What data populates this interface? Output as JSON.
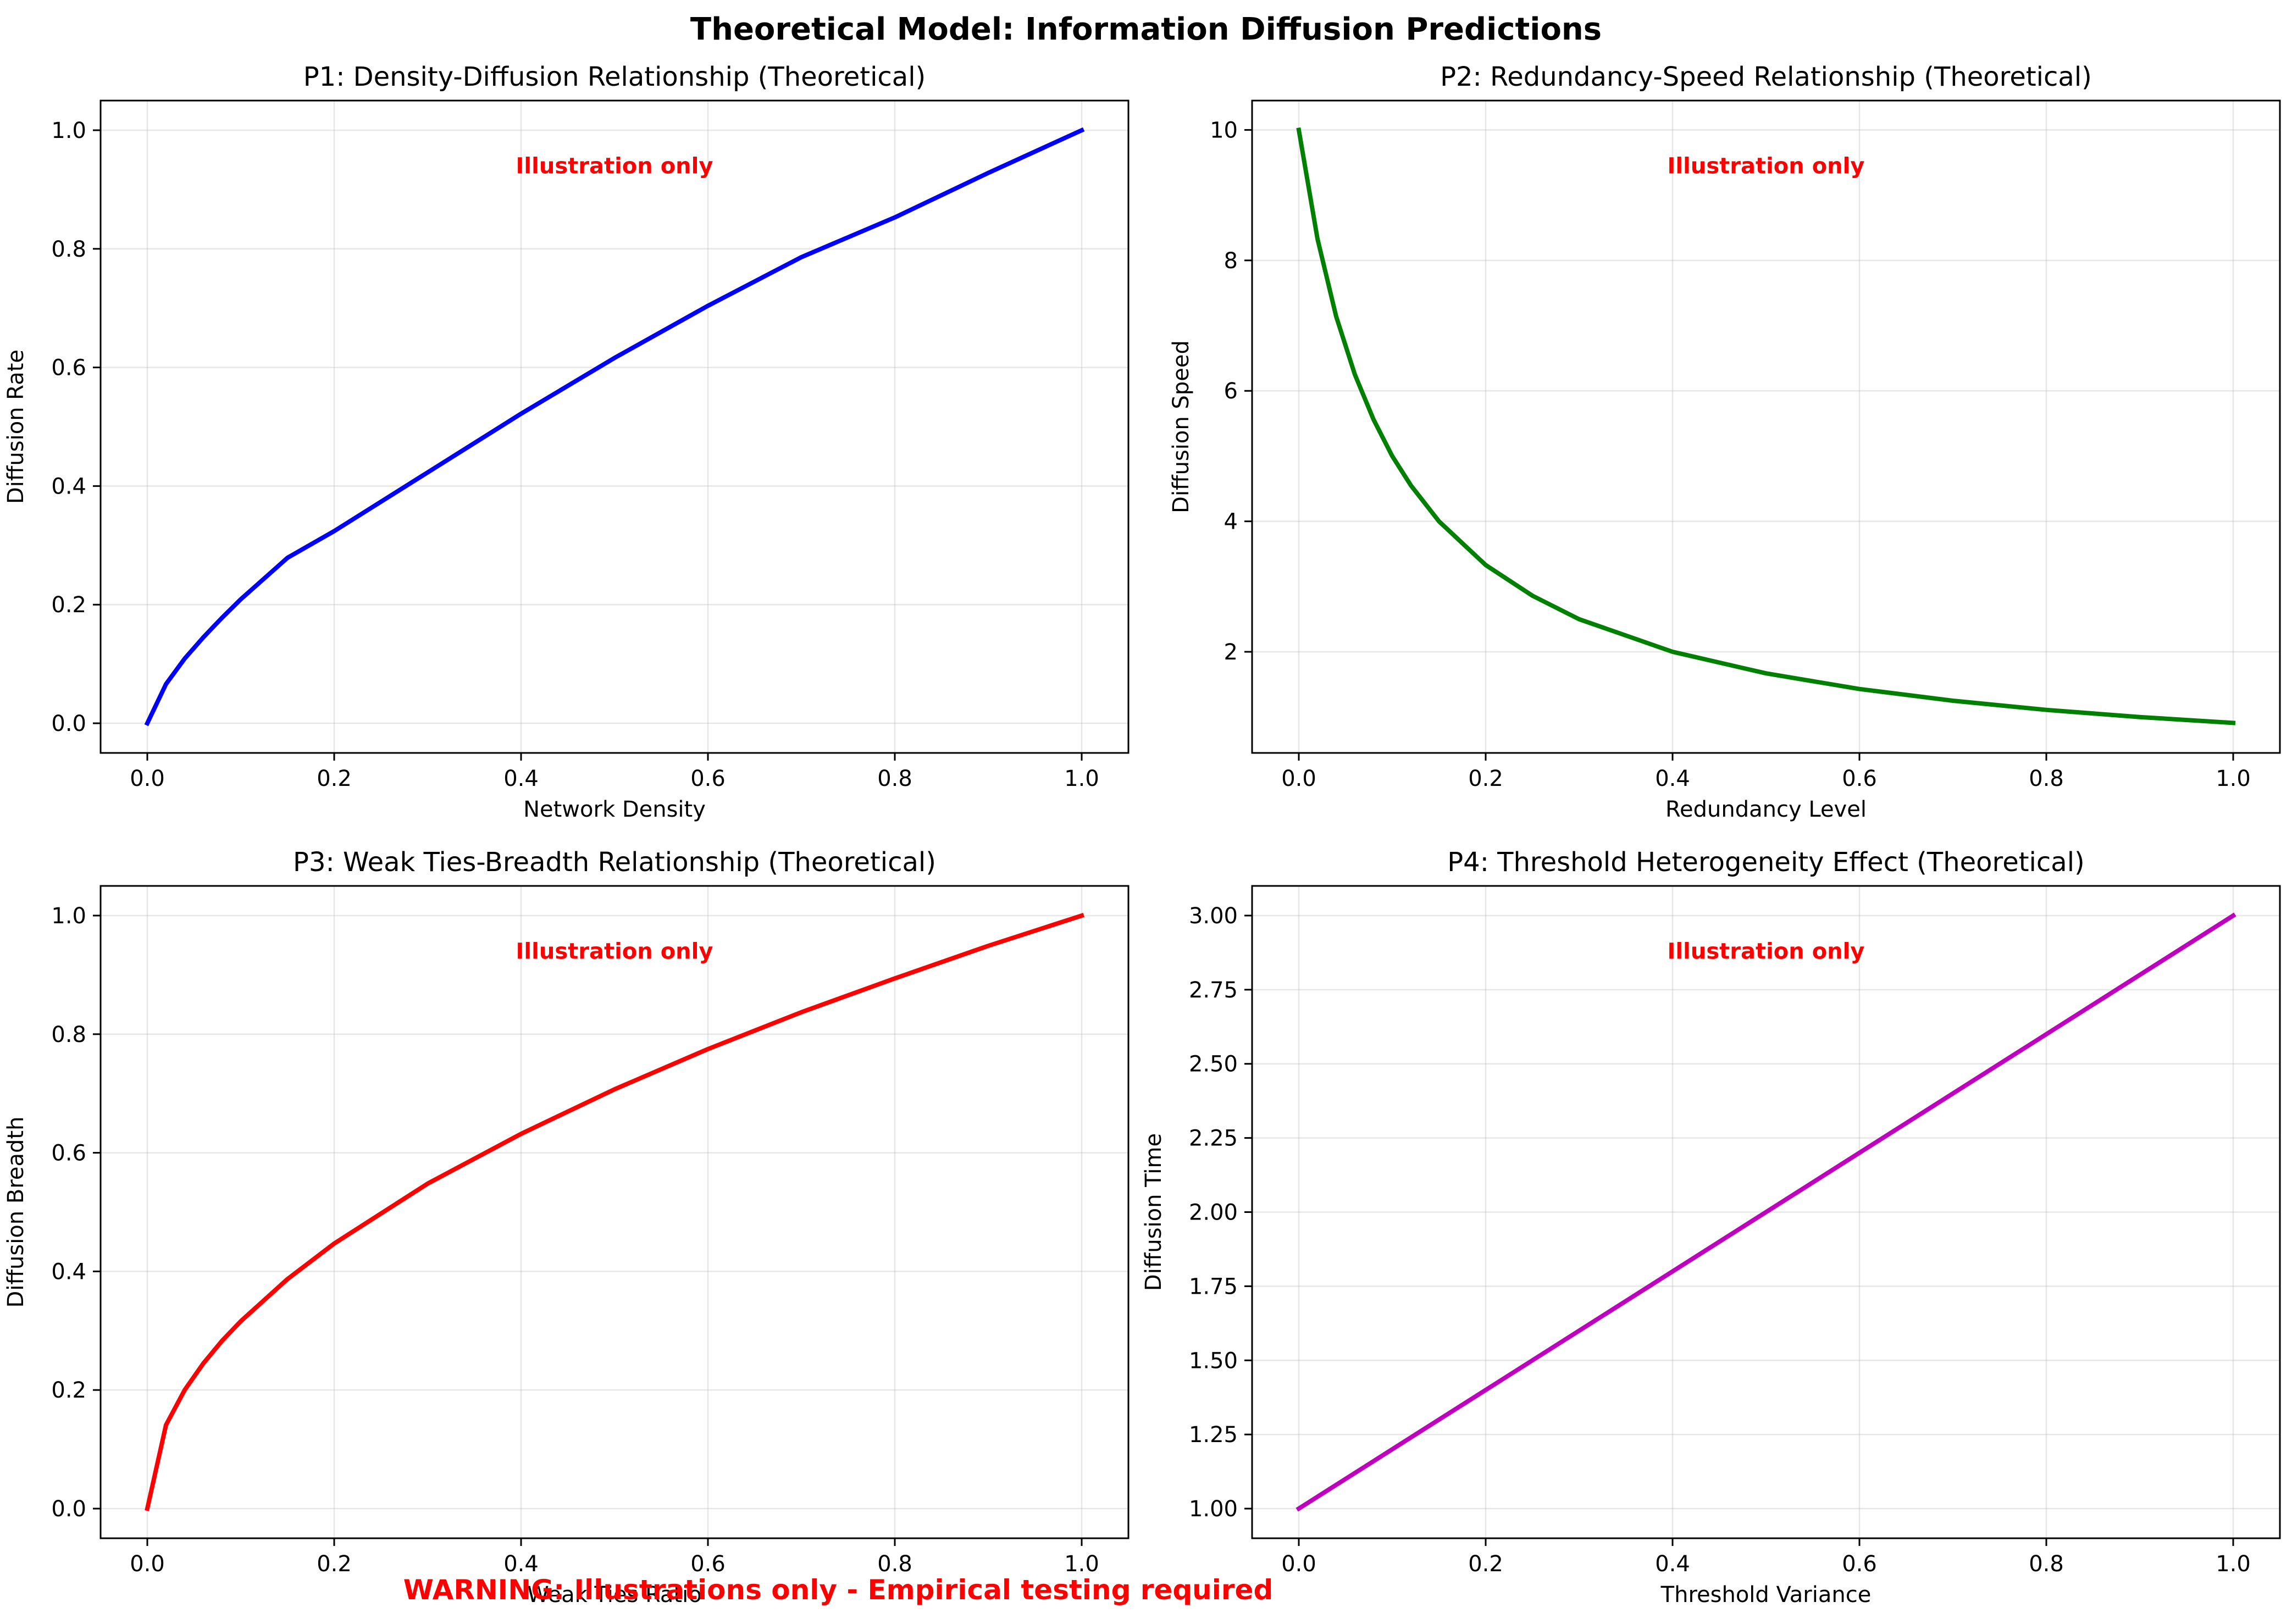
{
  "figure": {
    "title": "Theoretical Model: Information Diffusion Predictions",
    "warning": "WARNING: Illustrations only - Empirical testing required",
    "warning_color": "#ff0000"
  },
  "chart_data": [
    {
      "type": "line",
      "title": "P1: Density-Diffusion Relationship (Theoretical)",
      "xlabel": "Network Density",
      "ylabel": "Diffusion Rate",
      "xlim": [
        -0.05,
        1.05
      ],
      "ylim": [
        -0.05,
        1.05
      ],
      "xticks": [
        0.0,
        0.2,
        0.4,
        0.6,
        0.8,
        1.0
      ],
      "xtick_labels": [
        "0.0",
        "0.2",
        "0.4",
        "0.6",
        "0.8",
        "1.0"
      ],
      "yticks": [
        0.0,
        0.2,
        0.4,
        0.6,
        0.8,
        1.0
      ],
      "ytick_labels": [
        "0.0",
        "0.2",
        "0.4",
        "0.6",
        "0.8",
        "1.0"
      ],
      "grid": true,
      "annotation": "Illustration only",
      "annotation_color": "#ff0000",
      "series": [
        {
          "color": "#0000ff",
          "x": [
            0.0,
            0.02,
            0.04,
            0.06,
            0.08,
            0.1,
            0.15,
            0.2,
            0.3,
            0.4,
            0.5,
            0.6,
            0.7,
            0.8,
            0.9,
            1.0
          ],
          "y": [
            0.0,
            0.066,
            0.109,
            0.145,
            0.178,
            0.209,
            0.279,
            0.324,
            0.423,
            0.522,
            0.616,
            0.704,
            0.786,
            0.853,
            0.928,
            1.0
          ]
        }
      ]
    },
    {
      "type": "line",
      "title": "P2: Redundancy-Speed Relationship (Theoretical)",
      "xlabel": "Redundancy Level",
      "ylabel": "Diffusion Speed",
      "xlim": [
        -0.05,
        1.05
      ],
      "ylim": [
        0.45,
        10.45
      ],
      "xticks": [
        0.0,
        0.2,
        0.4,
        0.6,
        0.8,
        1.0
      ],
      "xtick_labels": [
        "0.0",
        "0.2",
        "0.4",
        "0.6",
        "0.8",
        "1.0"
      ],
      "yticks": [
        2,
        4,
        6,
        8,
        10
      ],
      "ytick_labels": [
        "2",
        "4",
        "6",
        "8",
        "10"
      ],
      "grid": true,
      "annotation": "Illustration only",
      "annotation_color": "#ff0000",
      "series": [
        {
          "color": "#008000",
          "x": [
            0.0,
            0.02,
            0.04,
            0.06,
            0.08,
            0.1,
            0.12,
            0.15,
            0.2,
            0.25,
            0.3,
            0.4,
            0.5,
            0.6,
            0.7,
            0.8,
            0.9,
            1.0
          ],
          "y": [
            10.0,
            8.33,
            7.14,
            6.25,
            5.56,
            5.0,
            4.55,
            4.0,
            3.33,
            2.86,
            2.5,
            2.0,
            1.67,
            1.43,
            1.25,
            1.11,
            1.0,
            0.91
          ]
        }
      ]
    },
    {
      "type": "line",
      "title": "P3: Weak Ties-Breadth Relationship (Theoretical)",
      "xlabel": "Weak Ties Ratio",
      "ylabel": "Diffusion Breadth",
      "xlim": [
        -0.05,
        1.05
      ],
      "ylim": [
        -0.05,
        1.05
      ],
      "xticks": [
        0.0,
        0.2,
        0.4,
        0.6,
        0.8,
        1.0
      ],
      "xtick_labels": [
        "0.0",
        "0.2",
        "0.4",
        "0.6",
        "0.8",
        "1.0"
      ],
      "yticks": [
        0.0,
        0.2,
        0.4,
        0.6,
        0.8,
        1.0
      ],
      "ytick_labels": [
        "0.0",
        "0.2",
        "0.4",
        "0.6",
        "0.8",
        "1.0"
      ],
      "grid": true,
      "annotation": "Illustration only",
      "annotation_color": "#ff0000",
      "series": [
        {
          "color": "#ff0000",
          "x": [
            0.0,
            0.02,
            0.04,
            0.06,
            0.08,
            0.1,
            0.15,
            0.2,
            0.3,
            0.4,
            0.5,
            0.6,
            0.7,
            0.8,
            0.9,
            1.0
          ],
          "y": [
            0.0,
            0.141,
            0.2,
            0.245,
            0.283,
            0.316,
            0.387,
            0.447,
            0.548,
            0.632,
            0.707,
            0.775,
            0.837,
            0.894,
            0.949,
            1.0
          ]
        }
      ]
    },
    {
      "type": "line",
      "title": "P4: Threshold Heterogeneity Effect (Theoretical)",
      "xlabel": "Threshold Variance",
      "ylabel": "Diffusion Time",
      "xlim": [
        -0.05,
        1.05
      ],
      "ylim": [
        0.9,
        3.1
      ],
      "xticks": [
        0.0,
        0.2,
        0.4,
        0.6,
        0.8,
        1.0
      ],
      "xtick_labels": [
        "0.0",
        "0.2",
        "0.4",
        "0.6",
        "0.8",
        "1.0"
      ],
      "yticks": [
        1.0,
        1.25,
        1.5,
        1.75,
        2.0,
        2.25,
        2.5,
        2.75,
        3.0
      ],
      "ytick_labels": [
        "1.00",
        "1.25",
        "1.50",
        "1.75",
        "2.00",
        "2.25",
        "2.50",
        "2.75",
        "3.00"
      ],
      "grid": true,
      "annotation": "Illustration only",
      "annotation_color": "#ff0000",
      "series": [
        {
          "color": "#bf00bf",
          "x": [
            0.0,
            1.0
          ],
          "y": [
            1.0,
            3.0
          ]
        }
      ]
    }
  ]
}
